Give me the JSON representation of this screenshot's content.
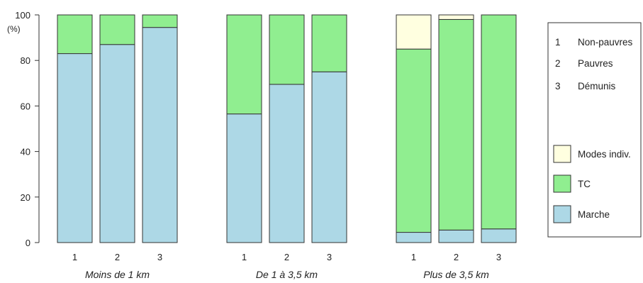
{
  "chart_data": {
    "type": "bar",
    "stacked": true,
    "y_unit_label": "(%)",
    "ylim": [
      0,
      100
    ],
    "yticks": [
      0,
      20,
      40,
      60,
      80,
      100
    ],
    "grid": false,
    "legend_position": "right",
    "groups": [
      {
        "label": "Moins de 1 km",
        "categories": [
          "1",
          "2",
          "3"
        ],
        "series": [
          {
            "name": "Marche",
            "values": [
              83,
              87,
              94.5
            ]
          },
          {
            "name": "TC",
            "values": [
              17,
              13,
              5.5
            ]
          },
          {
            "name": "Modes indiv.",
            "values": [
              0,
              0,
              0
            ]
          }
        ]
      },
      {
        "label": "De 1 à 3,5 km",
        "categories": [
          "1",
          "2",
          "3"
        ],
        "series": [
          {
            "name": "Marche",
            "values": [
              56.5,
              69.5,
              75
            ]
          },
          {
            "name": "TC",
            "values": [
              43.5,
              30.5,
              25
            ]
          },
          {
            "name": "Modes indiv.",
            "values": [
              0,
              0,
              0
            ]
          }
        ]
      },
      {
        "label": "Plus de 3,5 km",
        "categories": [
          "1",
          "2",
          "3"
        ],
        "series": [
          {
            "name": "Marche",
            "values": [
              4.5,
              5.5,
              6
            ]
          },
          {
            "name": "TC",
            "values": [
              80.5,
              92.5,
              94
            ]
          },
          {
            "name": "Modes indiv.",
            "values": [
              15,
              2,
              0
            ]
          }
        ]
      }
    ],
    "legend": {
      "categories": [
        {
          "key": "1",
          "label": "Non-pauvres"
        },
        {
          "key": "2",
          "label": "Pauvres"
        },
        {
          "key": "3",
          "label": "Démunis"
        }
      ],
      "modes": [
        {
          "name": "Modes indiv.",
          "color": "#ffffe0"
        },
        {
          "name": "TC",
          "color": "#90ee90"
        },
        {
          "name": "Marche",
          "color": "#add8e6"
        }
      ]
    }
  }
}
